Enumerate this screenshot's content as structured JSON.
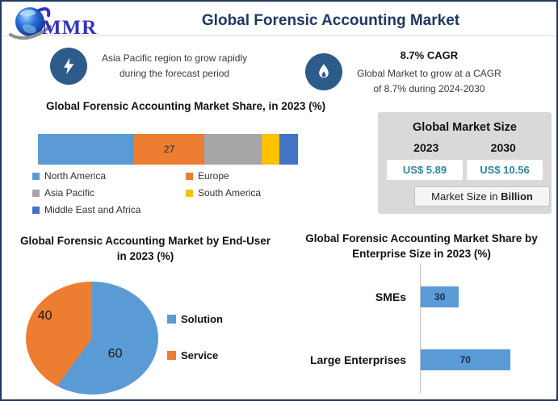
{
  "header": {
    "logo_text": "MMR",
    "title": "Global Forensic Accounting Market"
  },
  "callouts": {
    "left": {
      "icon": "lightning-icon",
      "line1": "Asia Pacific region to grow rapidly",
      "line2": "during the forecast period"
    },
    "right": {
      "icon": "flame-icon",
      "heading": "8.7% CAGR",
      "line1": "Global Market to grow at a CAGR",
      "line2": "of 8.7% during 2024-2030"
    }
  },
  "market_size": {
    "title": "Global Market Size",
    "years": [
      "2023",
      "2030"
    ],
    "values": [
      "US$ 5.89",
      "US$ 10.56"
    ],
    "note_prefix": "Market Size in ",
    "note_bold": "Billion"
  },
  "chart_data": [
    {
      "type": "bar",
      "variant": "horizontal-stacked",
      "title": "Global Forensic Accounting Market Share, in 2023 (%)",
      "categories": [
        "North America",
        "Europe",
        "Asia Pacific",
        "South America",
        "Middle East and Africa"
      ],
      "values": [
        37,
        27,
        22,
        7,
        7
      ],
      "segment_labels": [
        "",
        "27",
        "",
        "",
        ""
      ],
      "colors": [
        "#5B9BD5",
        "#ED7D31",
        "#A6A6A6",
        "#FFC000",
        "#4472C4"
      ],
      "legend_position": "bottom",
      "xlim": [
        0,
        100
      ]
    },
    {
      "type": "pie",
      "title": "Global Forensic Accounting Market by End-User in 2023 (%)",
      "labels": [
        "Solution",
        "Service"
      ],
      "values": [
        60,
        40
      ],
      "colors": [
        "#5B9BD5",
        "#ED7D31"
      ],
      "legend_position": "right"
    },
    {
      "type": "bar",
      "variant": "horizontal",
      "title": "Global Forensic Accounting Market Share by Enterprise Size in 2023 (%)",
      "categories": [
        "SMEs",
        "Large Enterprises"
      ],
      "values": [
        30,
        70
      ],
      "bar_color": "#5B9BD5",
      "xlim": [
        0,
        100
      ],
      "grid": false
    }
  ],
  "colors": {
    "accent_navy": "#1F3864",
    "icon_circle": "#2E5C8A",
    "value_teal": "#31849B",
    "card_gray": "#D9D9D9"
  }
}
